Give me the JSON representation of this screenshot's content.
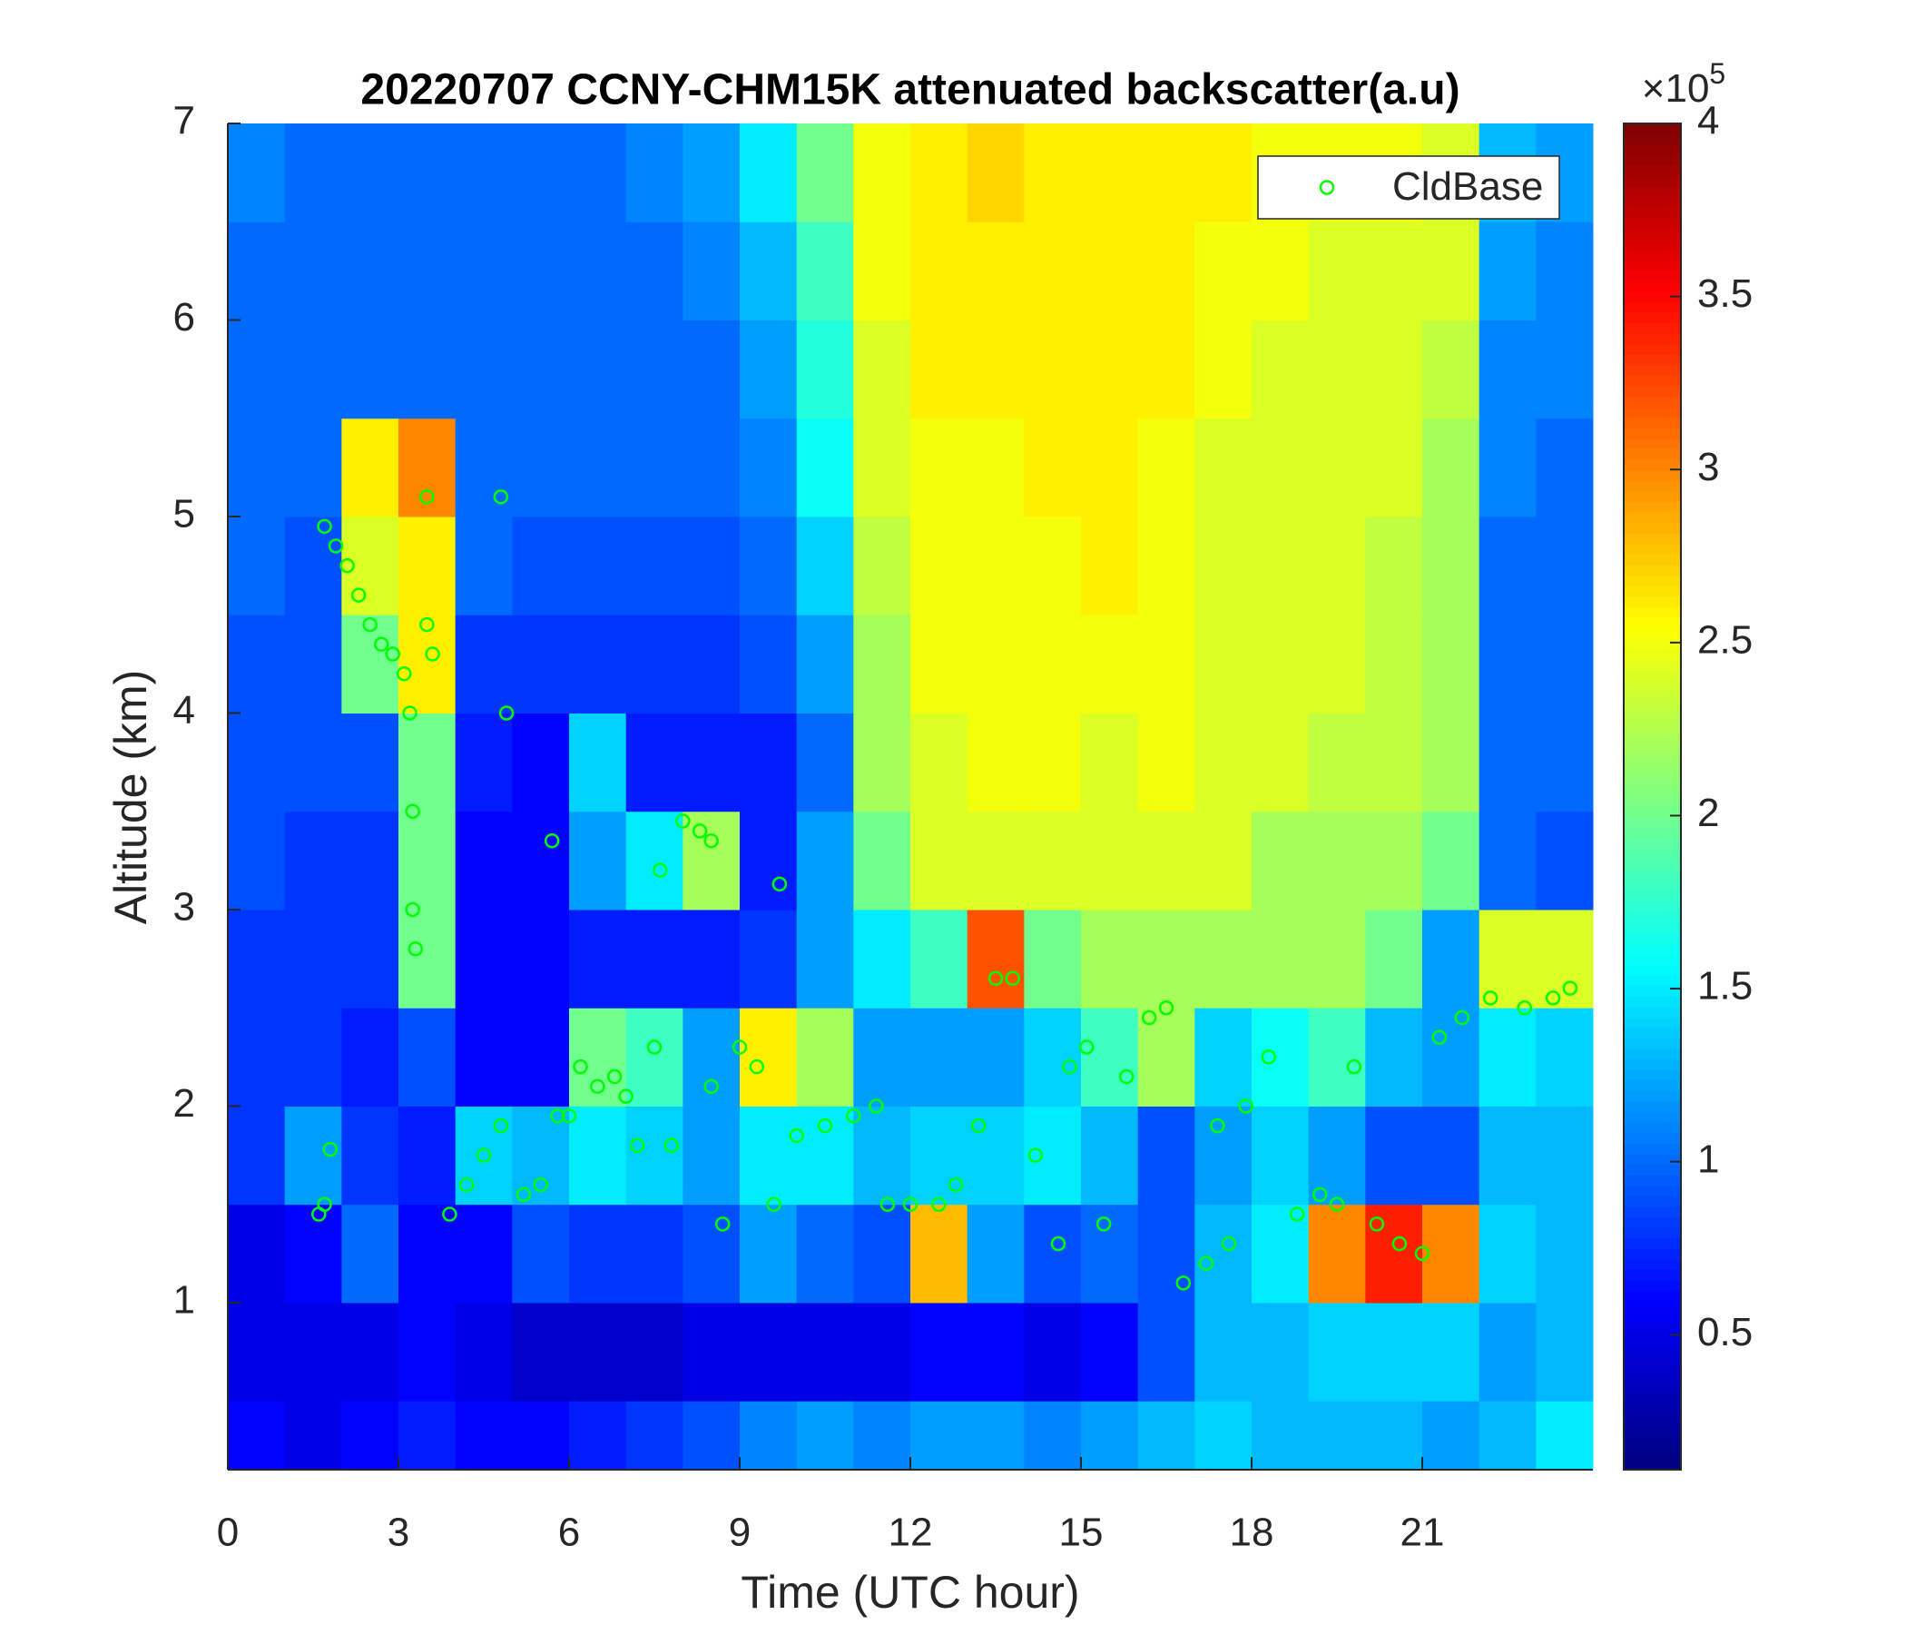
{
  "chart_data": {
    "type": "heatmap",
    "title": "20220707 CCNY-CHM15K attenuated backscatter(a.u)",
    "xlabel": "Time (UTC hour)",
    "ylabel": "Altitude (km)",
    "xlim": [
      0,
      24
    ],
    "ylim": [
      0.15,
      7
    ],
    "xticks": [
      0,
      3,
      6,
      9,
      12,
      15,
      18,
      21
    ],
    "yticks": [
      1,
      2,
      3,
      4,
      5,
      6,
      7
    ],
    "colormap": "jet",
    "xbins": [
      0,
      1,
      2,
      3,
      4,
      5,
      6,
      7,
      8,
      9,
      10,
      11,
      12,
      13,
      14,
      15,
      16,
      17,
      18,
      19,
      20,
      21,
      22,
      23,
      24
    ],
    "ybins": [
      0.15,
      0.5,
      1,
      1.5,
      2,
      2.5,
      3,
      3.5,
      4,
      4.5,
      5,
      5.5,
      6,
      6.5,
      7
    ],
    "z": [
      [
        0.6,
        0.5,
        0.6,
        0.7,
        0.6,
        0.6,
        0.7,
        0.8,
        0.9,
        1.1,
        1.2,
        1.1,
        1.2,
        1.2,
        1.1,
        1.2,
        1.3,
        1.4,
        1.3,
        1.3,
        1.3,
        1.2,
        1.3,
        1.5
      ],
      [
        0.5,
        0.5,
        0.5,
        0.6,
        0.5,
        0.4,
        0.4,
        0.4,
        0.5,
        0.5,
        0.5,
        0.5,
        0.6,
        0.6,
        0.5,
        0.6,
        0.9,
        1.3,
        1.3,
        1.4,
        1.4,
        1.4,
        1.2,
        1.3
      ],
      [
        0.5,
        0.6,
        1.0,
        0.6,
        0.6,
        0.9,
        0.8,
        0.8,
        0.9,
        1.2,
        1.0,
        0.9,
        2.8,
        1.2,
        0.9,
        1.0,
        0.9,
        1.3,
        1.5,
        3.0,
        3.4,
        3.0,
        1.4,
        1.3
      ],
      [
        0.8,
        1.2,
        0.8,
        0.7,
        1.4,
        1.3,
        1.5,
        1.4,
        1.2,
        1.5,
        1.5,
        1.3,
        1.4,
        1.4,
        1.5,
        1.3,
        0.9,
        1.2,
        1.4,
        1.2,
        0.9,
        0.9,
        1.3,
        1.3
      ],
      [
        0.8,
        0.8,
        0.7,
        0.9,
        0.6,
        0.6,
        2.0,
        1.8,
        1.2,
        2.6,
        2.2,
        1.2,
        1.2,
        1.2,
        1.4,
        1.8,
        2.2,
        1.4,
        1.6,
        1.8,
        1.3,
        1.2,
        1.5,
        1.4
      ],
      [
        0.8,
        0.8,
        0.8,
        2.0,
        0.6,
        0.6,
        0.7,
        0.7,
        0.7,
        0.8,
        1.2,
        1.5,
        1.8,
        3.2,
        2.0,
        2.2,
        2.2,
        2.2,
        2.2,
        2.2,
        2.0,
        1.2,
        2.4,
        2.4
      ],
      [
        0.9,
        0.8,
        0.8,
        2.0,
        0.6,
        0.6,
        1.2,
        1.5,
        2.2,
        0.7,
        1.2,
        2.0,
        2.4,
        2.4,
        2.4,
        2.4,
        2.4,
        2.4,
        2.2,
        2.2,
        2.2,
        2.0,
        1.0,
        0.9
      ],
      [
        0.9,
        0.9,
        0.9,
        2.0,
        0.7,
        0.6,
        1.4,
        0.7,
        0.7,
        0.7,
        1.0,
        2.2,
        2.4,
        2.5,
        2.5,
        2.4,
        2.5,
        2.4,
        2.4,
        2.3,
        2.3,
        2.2,
        1.0,
        1.0
      ],
      [
        0.9,
        0.9,
        2.0,
        2.6,
        0.8,
        0.8,
        0.8,
        0.8,
        0.8,
        0.9,
        1.2,
        2.2,
        2.5,
        2.5,
        2.5,
        2.5,
        2.5,
        2.4,
        2.4,
        2.4,
        2.3,
        2.2,
        1.0,
        1.0
      ],
      [
        1.0,
        0.9,
        2.4,
        2.6,
        1.0,
        0.9,
        0.9,
        0.9,
        0.9,
        1.0,
        1.4,
        2.3,
        2.5,
        2.5,
        2.5,
        2.6,
        2.5,
        2.4,
        2.4,
        2.4,
        2.3,
        2.2,
        1.0,
        1.0
      ],
      [
        1.0,
        1.0,
        2.6,
        3.0,
        1.0,
        1.0,
        1.0,
        1.0,
        1.0,
        1.1,
        1.6,
        2.4,
        2.5,
        2.5,
        2.6,
        2.6,
        2.5,
        2.4,
        2.4,
        2.4,
        2.4,
        2.2,
        1.1,
        1.0
      ],
      [
        1.0,
        1.0,
        1.0,
        1.0,
        1.0,
        1.0,
        1.0,
        1.0,
        1.0,
        1.2,
        1.7,
        2.4,
        2.6,
        2.6,
        2.6,
        2.6,
        2.6,
        2.5,
        2.4,
        2.4,
        2.4,
        2.3,
        1.1,
        1.1
      ],
      [
        1.0,
        1.0,
        1.0,
        1.0,
        1.0,
        1.0,
        1.0,
        1.0,
        1.1,
        1.3,
        1.8,
        2.5,
        2.6,
        2.6,
        2.6,
        2.6,
        2.6,
        2.5,
        2.5,
        2.4,
        2.4,
        2.4,
        1.2,
        1.1
      ],
      [
        1.1,
        1.0,
        1.0,
        1.0,
        1.0,
        1.0,
        1.0,
        1.1,
        1.2,
        1.5,
        2.0,
        2.5,
        2.6,
        2.7,
        2.6,
        2.6,
        2.6,
        2.6,
        2.5,
        2.5,
        2.5,
        2.4,
        1.3,
        1.2
      ]
    ],
    "colorbar": {
      "clim": [
        0.11,
        4
      ],
      "ticks": [
        0.5,
        1,
        1.5,
        2,
        2.5,
        3,
        3.5,
        4
      ],
      "scale_label": "×10",
      "scale_exponent": "5"
    },
    "series": [
      {
        "name": "CldBase",
        "color": "#00ff00",
        "x": [
          1.6,
          1.7,
          1.8,
          1.7,
          1.9,
          2.1,
          2.3,
          2.5,
          2.7,
          2.9,
          3.1,
          3.2,
          3.25,
          3.25,
          3.3,
          3.5,
          3.6,
          3.5,
          4.8,
          4.9,
          3.9,
          4.2,
          4.5,
          4.8,
          5.2,
          5.5,
          5.7,
          5.8,
          6.0,
          6.2,
          6.5,
          6.8,
          7.0,
          7.2,
          7.5,
          7.6,
          7.8,
          8.0,
          8.3,
          8.5,
          8.5,
          8.7,
          9.0,
          9.3,
          9.6,
          9.7,
          10.0,
          10.5,
          11.0,
          11.4,
          11.6,
          12.0,
          12.5,
          12.8,
          13.2,
          13.5,
          13.8,
          14.2,
          14.6,
          14.8,
          15.1,
          15.4,
          15.8,
          16.2,
          16.5,
          16.8,
          17.2,
          17.6,
          17.4,
          17.9,
          18.3,
          18.8,
          19.2,
          19.5,
          19.8,
          20.2,
          20.6,
          21.0,
          21.3,
          21.7,
          22.2,
          22.8,
          23.3,
          23.6
        ],
        "values": [
          1.45,
          1.5,
          1.78,
          4.95,
          4.85,
          4.75,
          4.6,
          4.45,
          4.35,
          4.3,
          4.2,
          4.0,
          3.5,
          3.0,
          2.8,
          4.45,
          4.3,
          5.1,
          5.1,
          4.0,
          1.45,
          1.6,
          1.75,
          1.9,
          1.55,
          1.6,
          3.35,
          1.95,
          1.95,
          2.2,
          2.1,
          2.15,
          2.05,
          1.8,
          2.3,
          3.2,
          1.8,
          3.45,
          3.4,
          3.35,
          2.1,
          1.4,
          2.3,
          2.2,
          1.5,
          3.13,
          1.85,
          1.9,
          1.95,
          2.0,
          1.5,
          1.5,
          1.5,
          1.6,
          1.9,
          2.65,
          2.65,
          1.75,
          1.3,
          2.2,
          2.3,
          1.4,
          2.15,
          2.45,
          2.5,
          1.1,
          1.2,
          1.3,
          1.9,
          2.0,
          2.25,
          1.45,
          1.55,
          1.5,
          2.2,
          1.4,
          1.3,
          1.25,
          2.35,
          2.45,
          2.55,
          2.5,
          2.55,
          2.6
        ]
      }
    ],
    "legend": "northeast"
  }
}
